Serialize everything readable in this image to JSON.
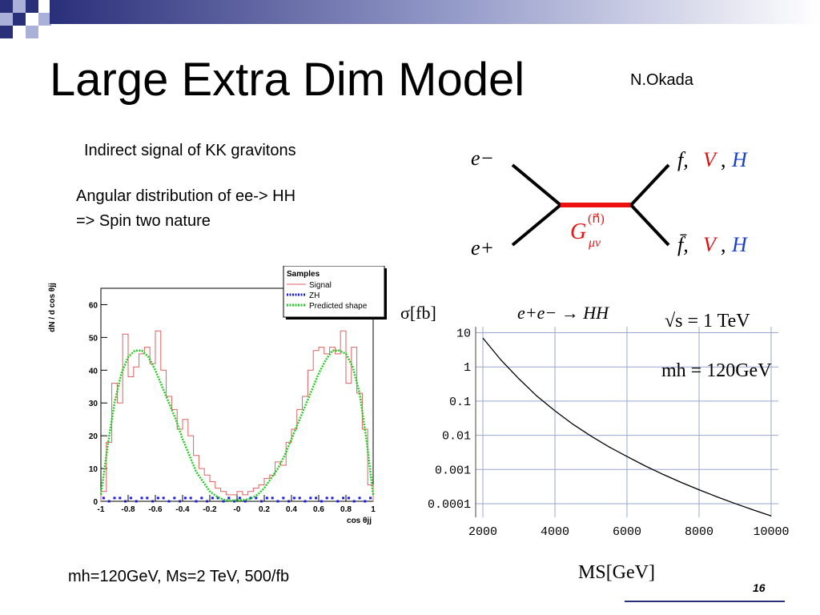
{
  "slide": {
    "title": "Large Extra Dim Model",
    "author": "N.Okada",
    "indirect_signal": "Indirect signal of KK gravitons",
    "angular_line1": "Angular distribution of ee-> HH",
    "angular_line2": "=> Spin two nature",
    "params": "mh=120GeV, Ms=2 TeV, 500/fb",
    "page_number": "16",
    "accent_color": "#2a2f7a"
  },
  "feynman": {
    "in_top": "e−",
    "in_bottom": "e+",
    "out_top_f": "f,",
    "out_top_V": "V",
    "out_top_H": "H",
    "out_bottom_f": "f̄,",
    "out_bottom_V": "V",
    "out_bottom_H": "H",
    "propagator_label": "G",
    "propagator_sup": "(n⃗)",
    "propagator_sub": "μν",
    "colors": {
      "propagator": "#ee1111",
      "V": "#dd1111",
      "H": "#1a3fcc"
    }
  },
  "chart_data": [
    {
      "type": "line",
      "title": "",
      "xlabel": "cos θjj",
      "ylabel": "dN / d cos θjj",
      "xlim": [
        -1,
        1
      ],
      "ylim": [
        0,
        65
      ],
      "xticks": [
        "-1",
        "-0.8",
        "-0.6",
        "-0.4",
        "-0.2",
        "-0",
        "0.2",
        "0.4",
        "0.6",
        "0.8",
        "1"
      ],
      "yticks": [
        "0",
        "10",
        "20",
        "30",
        "40",
        "50",
        "60"
      ],
      "legend_title": "Samples",
      "legend_position": "top-right",
      "series": [
        {
          "name": "Signal",
          "style": "step",
          "color": "#e06060",
          "x": [
            -1.0,
            -0.96,
            -0.92,
            -0.88,
            -0.84,
            -0.8,
            -0.76,
            -0.72,
            -0.68,
            -0.64,
            -0.6,
            -0.56,
            -0.52,
            -0.48,
            -0.44,
            -0.4,
            -0.36,
            -0.32,
            -0.28,
            -0.24,
            -0.2,
            -0.16,
            -0.12,
            -0.08,
            -0.04,
            0.0,
            0.04,
            0.08,
            0.12,
            0.16,
            0.2,
            0.24,
            0.28,
            0.32,
            0.36,
            0.4,
            0.44,
            0.48,
            0.52,
            0.56,
            0.6,
            0.64,
            0.68,
            0.72,
            0.76,
            0.8,
            0.84,
            0.88,
            0.92,
            0.96
          ],
          "values": [
            3,
            18,
            36,
            30,
            51,
            38,
            41,
            45,
            47,
            42,
            52,
            40,
            32,
            28,
            22,
            25,
            20,
            14,
            10,
            8,
            6,
            4,
            3,
            2,
            2,
            3,
            2,
            3,
            4,
            5,
            7,
            8,
            12,
            11,
            18,
            22,
            28,
            32,
            40,
            46,
            47,
            45,
            47,
            45,
            52,
            36,
            47,
            33,
            22,
            5
          ]
        },
        {
          "name": "ZH",
          "style": "dotted",
          "color": "#1a1aee",
          "x": [
            -0.98,
            -0.94,
            -0.9,
            -0.86,
            -0.82,
            -0.78,
            -0.74,
            -0.7,
            -0.66,
            -0.62,
            -0.58,
            -0.54,
            -0.5,
            -0.46,
            -0.42,
            -0.38,
            -0.34,
            -0.3,
            -0.26,
            -0.22,
            -0.18,
            -0.14,
            -0.1,
            -0.06,
            -0.02,
            0.02,
            0.06,
            0.1,
            0.14,
            0.18,
            0.22,
            0.26,
            0.3,
            0.34,
            0.38,
            0.42,
            0.46,
            0.5,
            0.54,
            0.58,
            0.62,
            0.66,
            0.7,
            0.74,
            0.78,
            0.82,
            0.86,
            0.9,
            0.94,
            0.98
          ],
          "values": [
            1,
            0,
            1,
            1,
            0,
            1,
            0,
            1,
            1,
            0,
            1,
            1,
            0,
            1,
            0,
            1,
            1,
            0,
            1,
            0,
            1,
            1,
            0,
            1,
            0,
            1,
            0,
            1,
            1,
            0,
            1,
            1,
            0,
            1,
            0,
            1,
            1,
            0,
            1,
            1,
            0,
            1,
            1,
            0,
            1,
            1,
            0,
            1,
            0,
            1
          ]
        },
        {
          "name": "Predicted shape",
          "style": "smooth",
          "color": "#22cc22",
          "x": [
            -1.0,
            -0.95,
            -0.9,
            -0.85,
            -0.8,
            -0.75,
            -0.7,
            -0.65,
            -0.6,
            -0.55,
            -0.5,
            -0.45,
            -0.4,
            -0.35,
            -0.3,
            -0.25,
            -0.2,
            -0.15,
            -0.1,
            -0.05,
            0.0,
            0.05,
            0.1,
            0.15,
            0.2,
            0.25,
            0.3,
            0.35,
            0.4,
            0.45,
            0.5,
            0.55,
            0.6,
            0.65,
            0.7,
            0.75,
            0.8,
            0.85,
            0.9,
            0.95,
            1.0
          ],
          "values": [
            2,
            17,
            30,
            39,
            44,
            46,
            46,
            44,
            40,
            35,
            30,
            25,
            19,
            14,
            9,
            6,
            3,
            1.5,
            0.5,
            0.2,
            0.3,
            0.4,
            0.8,
            2,
            4,
            7,
            10,
            14,
            19,
            24,
            29,
            34,
            39,
            43,
            46,
            46,
            45,
            41,
            33,
            19,
            2
          ]
        }
      ]
    },
    {
      "type": "line",
      "title": "e+e− → HH",
      "annotations": [
        "√s = 1 TeV",
        "mh = 120GeV"
      ],
      "xlabel": "MS[GeV]",
      "ylabel": "σ[fb]",
      "x_range": [
        1800,
        10200
      ],
      "y_log": true,
      "y_range": [
        4e-05,
        15
      ],
      "grid": true,
      "xticks": [
        "2000",
        "4000",
        "6000",
        "8000",
        "10000"
      ],
      "yticks": [
        "10",
        "1",
        "0.1",
        "0.01",
        "0.001",
        "0.0001"
      ],
      "series": [
        {
          "name": "",
          "x": [
            2000,
            2500,
            3000,
            3500,
            4000,
            4500,
            5000,
            5500,
            6000,
            6500,
            7000,
            7500,
            8000,
            8500,
            9000,
            9500,
            10000
          ],
          "values": [
            7.0,
            1.6,
            0.45,
            0.14,
            0.052,
            0.021,
            0.0095,
            0.0046,
            0.0024,
            0.00128,
            0.00072,
            0.00042,
            0.000255,
            0.000158,
            0.000101,
            6.6e-05,
            4.4e-05
          ]
        }
      ]
    }
  ]
}
